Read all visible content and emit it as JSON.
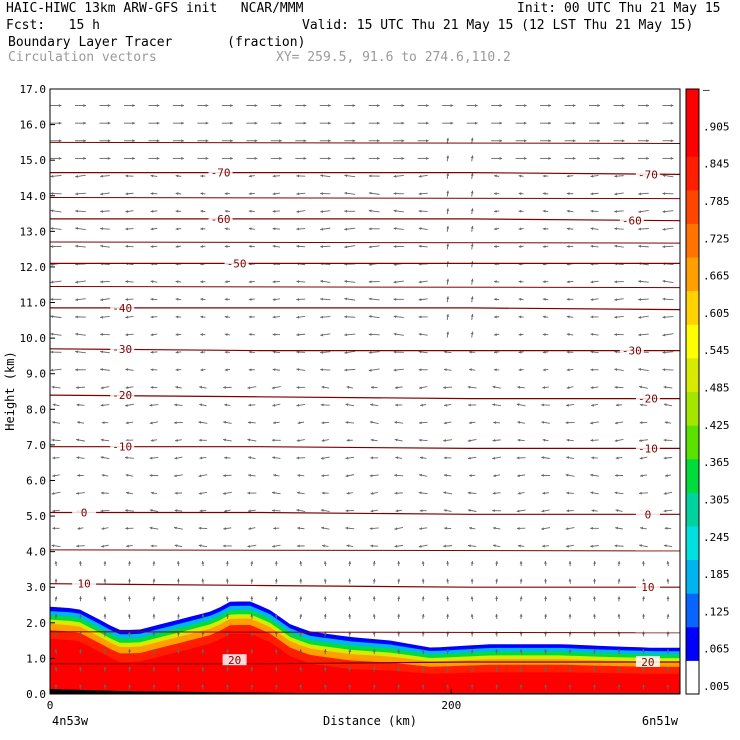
{
  "header": {
    "model_line": "HAIC-HIWC 13km ARW-GFS init   NCAR/MMM",
    "init_line": "Init: 00 UTC Thu 21 May 15",
    "fcst_line": "Fcst:   15 h",
    "valid_line": "Valid: 15 UTC Thu 21 May 15 (12 LST Thu 21 May 15)",
    "field_line": "Boundary Layer Tracer       (fraction)",
    "vector_line": "Circulation vectors",
    "xy_line": "XY= 259.5, 91.6 to 274.6,110.2"
  },
  "chart_data": {
    "type": "cross-section",
    "fill_field": "Boundary Layer Tracer",
    "units": "fraction",
    "xlabel": "Distance (km)",
    "ylabel": "Height (km)",
    "xlim": [
      0,
      314
    ],
    "ylim": [
      0,
      17
    ],
    "x_ticks": [
      0,
      200
    ],
    "y_ticks": [
      "0.0",
      "1.0",
      "2.0",
      "3.0",
      "4.0",
      "5.0",
      "6.0",
      "7.0",
      "8.0",
      "9.0",
      "10.0",
      "11.0",
      "12.0",
      "13.0",
      "14.0",
      "15.0",
      "16.0",
      "17.0"
    ],
    "x_end_labels": {
      "left": "4n53w",
      "right": "6n51w"
    },
    "tracer_top_km": [
      [
        0,
        2.45
      ],
      [
        14,
        2.4
      ],
      [
        26,
        2.05
      ],
      [
        34,
        1.8
      ],
      [
        44,
        1.8
      ],
      [
        58,
        2.0
      ],
      [
        72,
        2.2
      ],
      [
        82,
        2.35
      ],
      [
        90,
        2.6
      ],
      [
        100,
        2.6
      ],
      [
        110,
        2.35
      ],
      [
        120,
        1.95
      ],
      [
        130,
        1.75
      ],
      [
        150,
        1.6
      ],
      [
        170,
        1.5
      ],
      [
        190,
        1.3
      ],
      [
        205,
        1.35
      ],
      [
        220,
        1.4
      ],
      [
        235,
        1.4
      ],
      [
        255,
        1.4
      ],
      [
        275,
        1.35
      ],
      [
        300,
        1.3
      ],
      [
        314,
        1.3
      ]
    ],
    "temperature_contours": [
      {
        "label": "20",
        "height_km": [
          0.85,
          0.85,
          0.9,
          0.9
        ]
      },
      {
        "label": "10",
        "height_km": [
          3.1,
          3.05,
          3.0,
          3.0
        ]
      },
      {
        "label": "0",
        "height_km": [
          5.1,
          5.1,
          5.05,
          5.05
        ]
      },
      {
        "label": "-10",
        "height_km": [
          6.95,
          6.95,
          6.9,
          6.9
        ]
      },
      {
        "label": "-20",
        "height_km": [
          8.4,
          8.35,
          8.3,
          8.3
        ]
      },
      {
        "label": "-30",
        "height_km": [
          9.7,
          9.65,
          9.65,
          9.65
        ]
      },
      {
        "label": "-40",
        "height_km": [
          10.85,
          10.85,
          10.85,
          10.8
        ]
      },
      {
        "label": "-50",
        "height_km": [
          12.1,
          12.1,
          12.1,
          12.1
        ]
      },
      {
        "label": "-60",
        "height_km": [
          13.35,
          13.35,
          13.35,
          13.3
        ]
      },
      {
        "label": "-70",
        "height_km": [
          14.65,
          14.65,
          14.65,
          14.6
        ]
      }
    ],
    "contour_label_positions": [
      {
        "label": "20",
        "x_km": 92,
        "height_km": 0.95
      },
      {
        "label": "20",
        "x_km": 298,
        "height_km": 0.9
      },
      {
        "label": "10",
        "x_km": 17,
        "height_km": 3.1
      },
      {
        "label": "10",
        "x_km": 298,
        "height_km": 3.0
      },
      {
        "label": "0",
        "x_km": 17,
        "height_km": 5.1
      },
      {
        "label": "0",
        "x_km": 298,
        "height_km": 5.05
      },
      {
        "label": "-10",
        "x_km": 36,
        "height_km": 6.95
      },
      {
        "label": "-10",
        "x_km": 298,
        "height_km": 6.9
      },
      {
        "label": "-20",
        "x_km": 36,
        "height_km": 8.4
      },
      {
        "label": "-20",
        "x_km": 298,
        "height_km": 8.3
      },
      {
        "label": "-30",
        "x_km": 36,
        "height_km": 9.7
      },
      {
        "label": "-30",
        "x_km": 290,
        "height_km": 9.65
      },
      {
        "label": "-40",
        "x_km": 36,
        "height_km": 10.85
      },
      {
        "label": "-50",
        "x_km": 93,
        "height_km": 12.1
      },
      {
        "label": "-60",
        "x_km": 85,
        "height_km": 13.35
      },
      {
        "label": "-60",
        "x_km": 290,
        "height_km": 13.3
      },
      {
        "label": "-70",
        "x_km": 85,
        "height_km": 14.65
      },
      {
        "label": "-70",
        "x_km": 298,
        "height_km": 14.6
      }
    ],
    "colorbar": {
      "labels": [
        ".005",
        ".065",
        ".125",
        ".185",
        ".245",
        ".305",
        ".365",
        ".425",
        ".485",
        ".545",
        ".605",
        ".665",
        ".725",
        ".785",
        ".845",
        ".905",
        "–"
      ],
      "colors": [
        "#ffffff",
        "#0000ff",
        "#0a64ff",
        "#00b4f0",
        "#00e0e0",
        "#00d2a0",
        "#00dc3c",
        "#5ae100",
        "#a5e600",
        "#d7eb00",
        "#ffff00",
        "#ffd200",
        "#ffa000",
        "#ff7300",
        "#ff4600",
        "#ff1e00",
        "#ff0000",
        "#ff0000"
      ]
    },
    "vector_color": "#666666",
    "contour_color": "#800000"
  }
}
